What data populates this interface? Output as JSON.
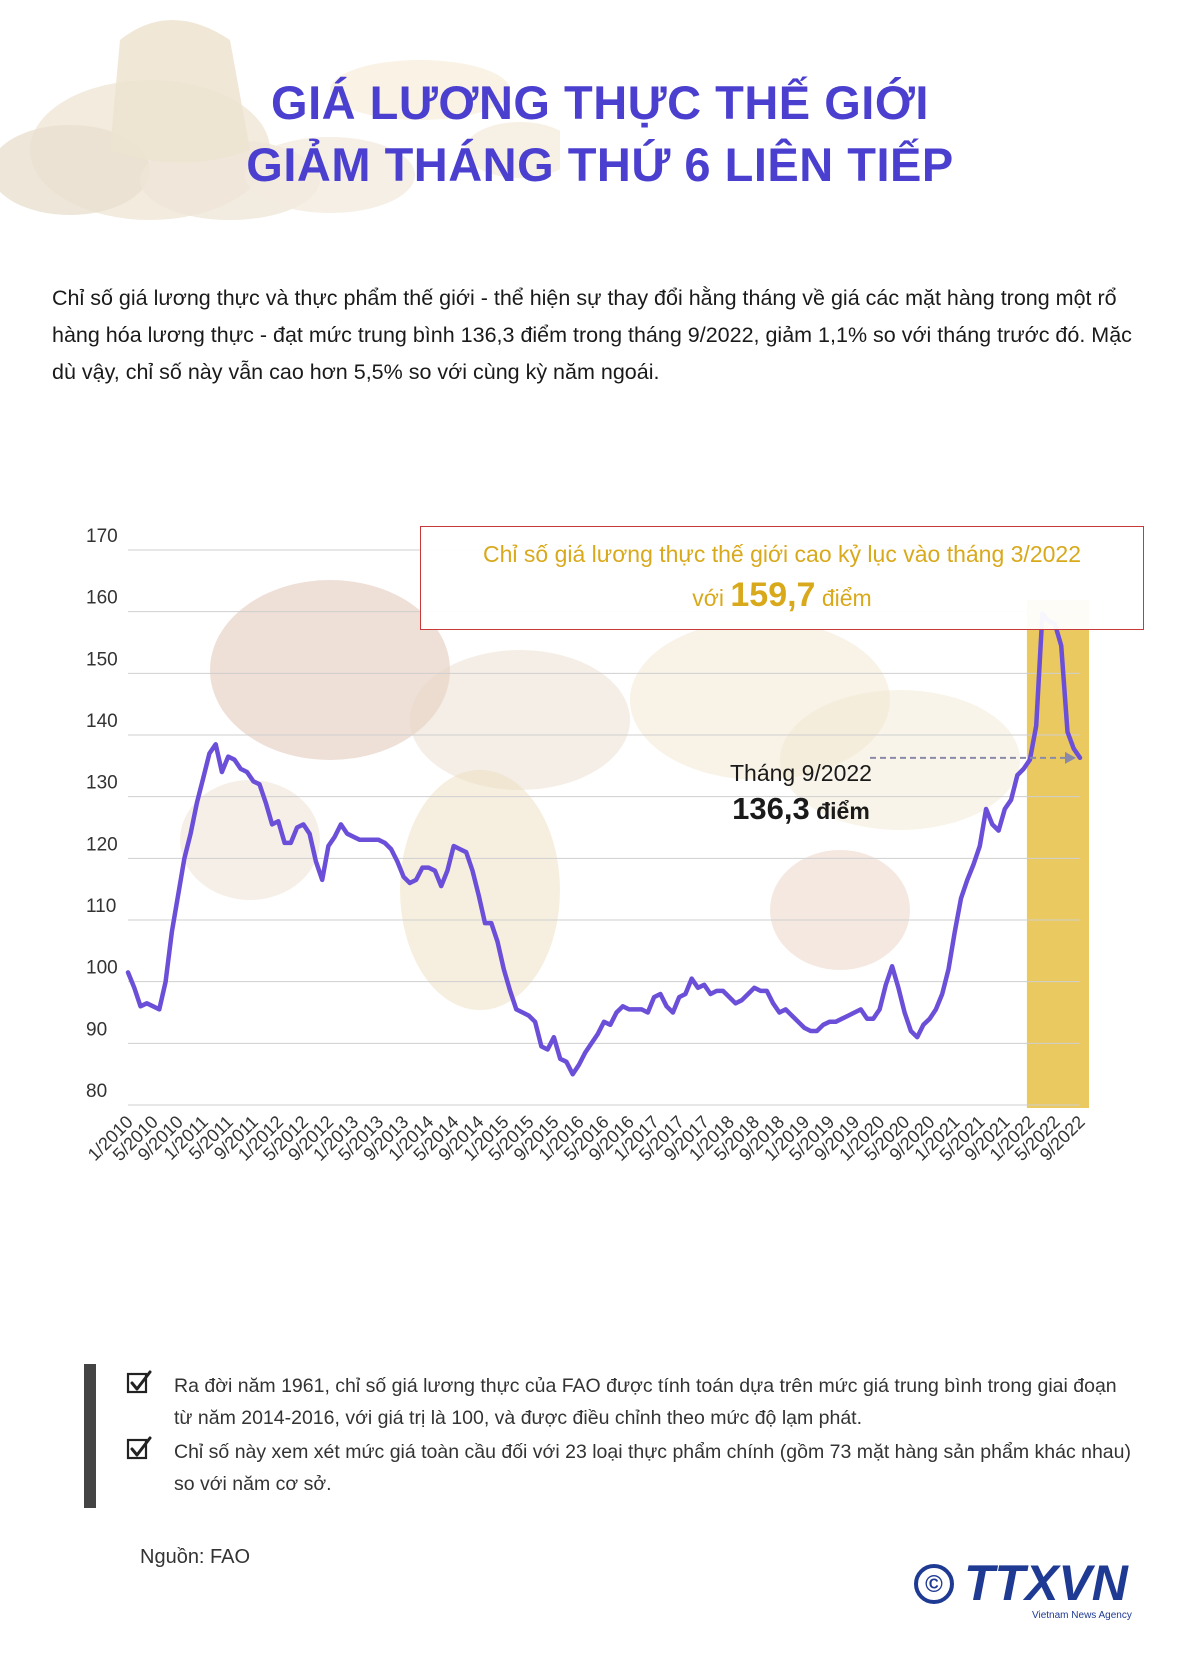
{
  "header": {
    "title_line1": "GIÁ LƯƠNG THỰC THẾ GIỚI",
    "title_line2": "GIẢM THÁNG THỨ 6 LIÊN TIẾP"
  },
  "intro": "Chỉ số giá lương thực và thực phẩm thế giới - thể hiện sự thay đổi hằng tháng về giá các mặt hàng trong một rổ hàng hóa lương thực - đạt mức trung bình 136,3 điểm trong tháng 9/2022, giảm 1,1% so với tháng trước đó. Mặc dù vậy, chỉ số này vẫn cao hơn 5,5% so với cùng kỳ năm ngoái.",
  "callout": {
    "line1": "Chỉ số giá lương thực thế giới cao kỷ lục vào tháng 3/2022",
    "prefix": "với",
    "value": "159,7",
    "suffix": "điểm"
  },
  "latest_label": {
    "month": "Tháng 9/2022",
    "value": "136,3",
    "unit": "điểm"
  },
  "notes": [
    "Ra đời năm 1961, chỉ số giá lương thực của FAO được tính toán dựa trên mức giá trung bình trong giai đoạn từ năm 2014-2016, với giá trị là 100, và được điều chỉnh theo mức độ lạm phát.",
    "Chỉ số này xem xét mức giá toàn cầu đối với 23 loại thực phẩm chính (gồm 73 mặt hàng sản phẩm khác nhau) so với năm cơ sở."
  ],
  "source": "Nguồn: FAO",
  "logo": {
    "copyright": "©",
    "brand": "TTXVN",
    "subtitle": "Vietnam News Agency"
  },
  "colors": {
    "title": "#4a3fcf",
    "line": "#6b4fd8",
    "highlight": "#e8bf45",
    "callout_text": "#d9a91c",
    "callout_border": "#c8393a"
  },
  "chart_data": {
    "type": "line",
    "title": "",
    "xlabel": "",
    "ylabel": "",
    "ylim": [
      80,
      170
    ],
    "yticks": [
      80,
      90,
      100,
      110,
      120,
      130,
      140,
      150,
      160,
      170
    ],
    "grid": true,
    "highlight_range": [
      "1/2022",
      "9/2022"
    ],
    "x_tick_labels": [
      "1/2010",
      "5/2010",
      "9/2010",
      "1/2011",
      "5/2011",
      "9/2011",
      "1/2012",
      "5/2012",
      "9/2012",
      "1/2013",
      "5/2013",
      "9/2013",
      "1/2014",
      "5/2014",
      "9/2014",
      "1/2015",
      "5/2015",
      "9/2015",
      "1/2016",
      "5/2016",
      "9/2016",
      "1/2017",
      "5/2017",
      "9/2017",
      "1/2018",
      "5/2018",
      "9/2018",
      "1/2019",
      "5/2019",
      "9/2019",
      "1/2020",
      "5/2020",
      "9/2020",
      "1/2021",
      "5/2021",
      "9/2021",
      "1/2022",
      "5/2022",
      "9/2022"
    ],
    "start": "1/2010",
    "values": [
      101.5,
      99.0,
      96.0,
      96.5,
      96.0,
      95.5,
      100.0,
      108.0,
      114.0,
      120.0,
      124.0,
      129.0,
      133.0,
      137.0,
      138.5,
      134.0,
      136.5,
      136.0,
      134.5,
      134.0,
      132.5,
      132.0,
      129.0,
      125.5,
      126.0,
      122.5,
      122.5,
      125.0,
      125.5,
      124.0,
      119.5,
      116.5,
      122.0,
      123.5,
      125.5,
      124.0,
      123.5,
      123.0,
      123.0,
      123.0,
      123.0,
      122.5,
      121.5,
      119.5,
      117.0,
      116.0,
      116.5,
      118.5,
      118.5,
      118.0,
      115.5,
      118.0,
      122.0,
      121.5,
      121.0,
      118.0,
      114.0,
      109.5,
      109.5,
      106.5,
      102.0,
      98.5,
      95.5,
      95.0,
      94.5,
      93.5,
      89.5,
      89.0,
      91.0,
      87.5,
      87.0,
      85.0,
      86.5,
      88.5,
      90.0,
      91.5,
      93.5,
      93.0,
      95.0,
      96.0,
      95.5,
      95.5,
      95.5,
      95.0,
      97.5,
      98.0,
      96.0,
      95.0,
      97.5,
      98.0,
      100.5,
      99.0,
      99.5,
      98.0,
      98.5,
      98.5,
      97.5,
      96.5,
      97.0,
      98.0,
      99.0,
      98.5,
      98.5,
      96.5,
      95.0,
      95.5,
      94.5,
      93.5,
      92.5,
      92.0,
      92.0,
      93.0,
      93.5,
      93.5,
      94.0,
      94.5,
      95.0,
      95.5,
      94.0,
      94.0,
      95.5,
      99.5,
      102.5,
      99.0,
      95.0,
      92.0,
      91.0,
      93.0,
      94.0,
      95.5,
      98.0,
      102.0,
      108.0,
      113.5,
      116.5,
      119.0,
      122.0,
      128.0,
      125.5,
      124.5,
      128.0,
      129.5,
      133.5,
      134.5,
      136.0,
      141.5,
      159.7,
      158.5,
      158.0,
      154.5,
      140.5,
      137.8,
      136.3
    ]
  }
}
